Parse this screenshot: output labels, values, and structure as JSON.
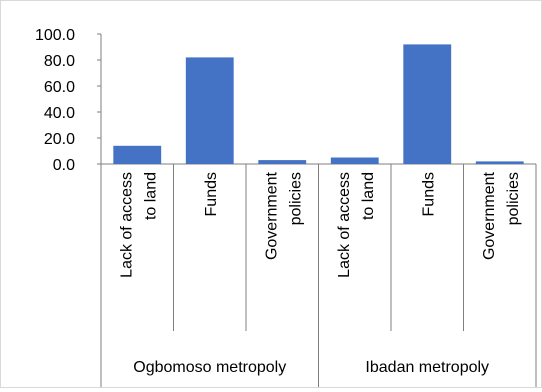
{
  "chart_data": {
    "type": "bar",
    "ylim": [
      0,
      100
    ],
    "yticks": [
      0,
      20,
      40,
      60,
      80,
      100
    ],
    "ytick_labels": [
      "0.0",
      "20.0",
      "40.0",
      "60.0",
      "80.0",
      "100.0"
    ],
    "grid": false,
    "legend": "none",
    "bar_color": "#4472c4",
    "groups": [
      {
        "name": "Ogbomoso metropoly",
        "categories": [
          [
            "Lack of access",
            "to land"
          ],
          [
            "Funds"
          ],
          [
            "Government",
            "policies"
          ]
        ],
        "values": [
          14.0,
          82.0,
          3.0
        ]
      },
      {
        "name": "Ibadan metropoly",
        "categories": [
          [
            "Lack of access",
            "to land"
          ],
          [
            "Funds"
          ],
          [
            "Government",
            "policies"
          ]
        ],
        "values": [
          5.0,
          92.0,
          2.0
        ]
      }
    ]
  }
}
